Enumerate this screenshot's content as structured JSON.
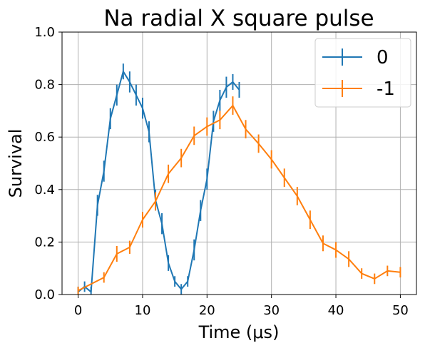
{
  "chart_data": {
    "type": "line",
    "title": "Na radial X square pulse",
    "xlabel": "Time (μs)",
    "ylabel": "Survival",
    "xlim": [
      -2.5,
      52.5
    ],
    "ylim": [
      0.0,
      1.0
    ],
    "xticks": [
      0,
      10,
      20,
      30,
      40,
      50
    ],
    "yticks": [
      0.0,
      0.2,
      0.4,
      0.6,
      0.8,
      1.0
    ],
    "xtick_labels": [
      "0",
      "10",
      "20",
      "30",
      "40",
      "50"
    ],
    "ytick_labels": [
      "0.0",
      "0.2",
      "0.4",
      "0.6",
      "0.8",
      "1.0"
    ],
    "grid": true,
    "legend_position": "top-right",
    "series": [
      {
        "name": "0",
        "color": "#1f77b4",
        "x": [
          0,
          1,
          2,
          3,
          4,
          5,
          6,
          7,
          8,
          9,
          10,
          11,
          12,
          13,
          14,
          15,
          16,
          17,
          18,
          19,
          20,
          21,
          22,
          23,
          24,
          25
        ],
        "y": [
          0.01,
          0.03,
          0.01,
          0.34,
          0.47,
          0.67,
          0.76,
          0.85,
          0.81,
          0.76,
          0.71,
          0.62,
          0.36,
          0.27,
          0.12,
          0.05,
          0.02,
          0.05,
          0.17,
          0.32,
          0.44,
          0.66,
          0.74,
          0.79,
          0.81,
          0.78
        ],
        "err": [
          0.02,
          0.02,
          0.02,
          0.04,
          0.04,
          0.04,
          0.04,
          0.03,
          0.04,
          0.04,
          0.04,
          0.04,
          0.04,
          0.04,
          0.03,
          0.02,
          0.02,
          0.02,
          0.04,
          0.04,
          0.04,
          0.04,
          0.04,
          0.04,
          0.03,
          0.03
        ]
      },
      {
        "name": "-1",
        "color": "#ff7f0e",
        "x": [
          0,
          4,
          6,
          8,
          10,
          12,
          14,
          16,
          18,
          20,
          22,
          24,
          26,
          28,
          30,
          32,
          34,
          36,
          38,
          40,
          42,
          44,
          46,
          48,
          50
        ],
        "y": [
          0.015,
          0.065,
          0.155,
          0.18,
          0.285,
          0.355,
          0.46,
          0.52,
          0.605,
          0.64,
          0.665,
          0.72,
          0.63,
          0.575,
          0.515,
          0.445,
          0.375,
          0.285,
          0.195,
          0.17,
          0.135,
          0.08,
          0.06,
          0.09,
          0.085
        ],
        "err": [
          0.015,
          0.02,
          0.03,
          0.025,
          0.03,
          0.035,
          0.035,
          0.035,
          0.035,
          0.035,
          0.035,
          0.035,
          0.035,
          0.035,
          0.035,
          0.035,
          0.035,
          0.035,
          0.03,
          0.03,
          0.03,
          0.02,
          0.02,
          0.02,
          0.02
        ]
      }
    ]
  }
}
